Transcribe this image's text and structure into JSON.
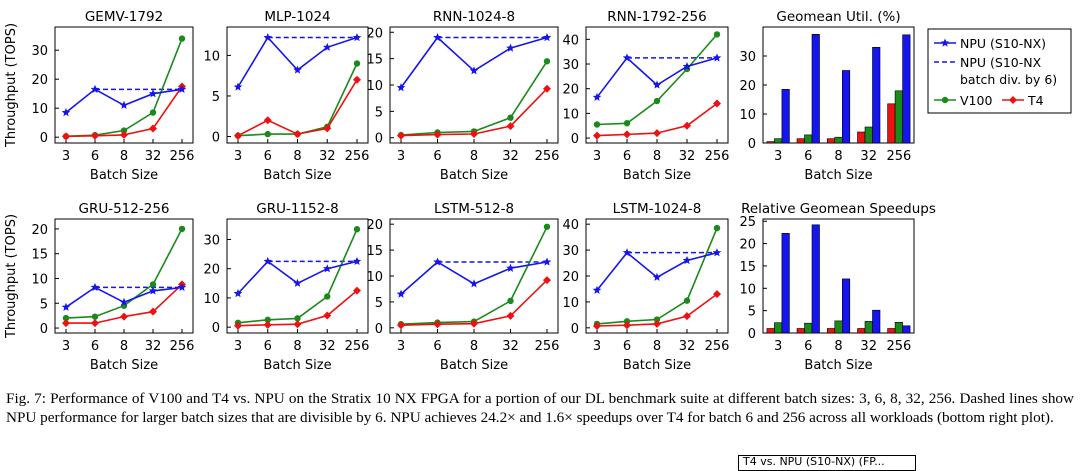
{
  "chart_data": [
    {
      "type": "line",
      "title": "GEMV-1792",
      "ylabel": "Throughput (TOPS)",
      "xlabel": "Batch Size",
      "categories": [
        "3",
        "6",
        "8",
        "32",
        "256"
      ],
      "yticks": [
        0,
        10,
        20,
        30
      ],
      "ylim": [
        -2,
        38
      ],
      "series": [
        {
          "name": "NPU (S10-NX)",
          "values": [
            8.5,
            16.5,
            11,
            15,
            16.5
          ]
        },
        {
          "name": "V100",
          "values": [
            0.3,
            0.7,
            2.3,
            8.5,
            34
          ]
        },
        {
          "name": "T4",
          "values": [
            0.3,
            0.5,
            0.8,
            3,
            17.5
          ]
        }
      ],
      "dashed": 16.5
    },
    {
      "type": "line",
      "title": "MLP-1024",
      "ylabel": "",
      "xlabel": "Batch Size",
      "categories": [
        "3",
        "6",
        "8",
        "32",
        "256"
      ],
      "yticks": [
        0,
        5,
        10
      ],
      "ylim": [
        -0.8,
        13.5
      ],
      "series": [
        {
          "name": "NPU (S10-NX)",
          "values": [
            6.1,
            12.2,
            8.2,
            11,
            12.2
          ]
        },
        {
          "name": "V100",
          "values": [
            0.1,
            0.3,
            0.3,
            1.2,
            9
          ]
        },
        {
          "name": "T4",
          "values": [
            0.1,
            2,
            0.3,
            1,
            7
          ]
        }
      ],
      "dashed": 12.2
    },
    {
      "type": "line",
      "title": "RNN-1024-8",
      "ylabel": "",
      "xlabel": "Batch Size",
      "categories": [
        "3",
        "6",
        "8",
        "32",
        "256"
      ],
      "yticks": [
        0,
        5,
        10,
        15,
        20
      ],
      "ylim": [
        -1,
        21
      ],
      "series": [
        {
          "name": "NPU (S10-NX)",
          "values": [
            9.5,
            19,
            12.7,
            17,
            19
          ]
        },
        {
          "name": "V100",
          "values": [
            0.5,
            1,
            1.2,
            3.8,
            14.5
          ]
        },
        {
          "name": "T4",
          "values": [
            0.4,
            0.6,
            0.7,
            2.2,
            9.3
          ]
        }
      ],
      "dashed": 19
    },
    {
      "type": "line",
      "title": "RNN-1792-256",
      "ylabel": "",
      "xlabel": "Batch Size",
      "categories": [
        "3",
        "6",
        "8",
        "32",
        "256"
      ],
      "yticks": [
        0,
        10,
        20,
        30,
        40
      ],
      "ylim": [
        -2,
        45
      ],
      "series": [
        {
          "name": "NPU (S10-NX)",
          "values": [
            16.5,
            32.5,
            21.5,
            29,
            32.5
          ]
        },
        {
          "name": "V100",
          "values": [
            5.5,
            6,
            15,
            28,
            42
          ]
        },
        {
          "name": "T4",
          "values": [
            1,
            1.5,
            2,
            5,
            14
          ]
        }
      ],
      "dashed": 32.5
    },
    {
      "type": "bar",
      "title": "Geomean Util. (%)",
      "ylabel": "",
      "xlabel": "Batch Size",
      "categories": [
        "3",
        "6",
        "8",
        "32",
        "256"
      ],
      "yticks": [
        0,
        10,
        20,
        30
      ],
      "ylim": [
        0,
        40
      ],
      "series": [
        {
          "name": "T4",
          "values": [
            0.5,
            1.5,
            1.5,
            3.8,
            13.5
          ]
        },
        {
          "name": "V100",
          "values": [
            1.5,
            2.8,
            2,
            5.5,
            18
          ]
        },
        {
          "name": "NPU (S10-NX)",
          "values": [
            18.5,
            37.5,
            25,
            33,
            37.3
          ]
        }
      ]
    },
    {
      "type": "line",
      "title": "GRU-512-256",
      "ylabel": "Throughput (TOPS)",
      "xlabel": "Batch Size",
      "categories": [
        "3",
        "6",
        "8",
        "32",
        "256"
      ],
      "yticks": [
        0,
        5,
        10,
        15,
        20
      ],
      "ylim": [
        -1,
        22
      ],
      "series": [
        {
          "name": "NPU (S10-NX)",
          "values": [
            4.2,
            8.2,
            5.2,
            7.5,
            8.2
          ]
        },
        {
          "name": "V100",
          "values": [
            2,
            2.3,
            4.5,
            8.8,
            20
          ]
        },
        {
          "name": "T4",
          "values": [
            1,
            1,
            2.3,
            3.3,
            8.8
          ]
        }
      ],
      "dashed": 8.2
    },
    {
      "type": "line",
      "title": "GRU-1152-8",
      "ylabel": "",
      "xlabel": "Batch Size",
      "categories": [
        "3",
        "6",
        "8",
        "32",
        "256"
      ],
      "yticks": [
        0,
        10,
        20,
        30
      ],
      "ylim": [
        -2,
        37
      ],
      "series": [
        {
          "name": "NPU (S10-NX)",
          "values": [
            11.5,
            22.5,
            15,
            20,
            22.5
          ]
        },
        {
          "name": "V100",
          "values": [
            1.5,
            2.5,
            3,
            10.5,
            33.5
          ]
        },
        {
          "name": "T4",
          "values": [
            0.5,
            0.8,
            1,
            4,
            12.5
          ]
        }
      ],
      "dashed": 22.5
    },
    {
      "type": "line",
      "title": "LSTM-512-8",
      "ylabel": "",
      "xlabel": "Batch Size",
      "categories": [
        "3",
        "6",
        "8",
        "32",
        "256"
      ],
      "yticks": [
        0,
        5,
        10,
        15,
        20
      ],
      "ylim": [
        -1,
        21
      ],
      "series": [
        {
          "name": "NPU (S10-NX)",
          "values": [
            6.5,
            12.7,
            8.5,
            11.5,
            12.7
          ]
        },
        {
          "name": "V100",
          "values": [
            0.7,
            1,
            1.2,
            5.2,
            19.5
          ]
        },
        {
          "name": "T4",
          "values": [
            0.5,
            0.7,
            0.8,
            2.3,
            9.2
          ]
        }
      ],
      "dashed": 12.7
    },
    {
      "type": "line",
      "title": "LSTM-1024-8",
      "ylabel": "",
      "xlabel": "Batch Size",
      "categories": [
        "3",
        "6",
        "8",
        "32",
        "256"
      ],
      "yticks": [
        0,
        10,
        20,
        30,
        40
      ],
      "ylim": [
        -2,
        42
      ],
      "series": [
        {
          "name": "NPU (S10-NX)",
          "values": [
            14.5,
            29,
            19.5,
            26,
            29
          ]
        },
        {
          "name": "V100",
          "values": [
            1.5,
            2.5,
            3.2,
            10.5,
            38.5
          ]
        },
        {
          "name": "T4",
          "values": [
            0.7,
            1,
            1.5,
            4.5,
            13
          ]
        }
      ],
      "dashed": 29
    },
    {
      "type": "bar",
      "title": "Relative Geomean Speedups",
      "ylabel": "",
      "xlabel": "Batch Size",
      "categories": [
        "3",
        "6",
        "8",
        "32",
        "256"
      ],
      "yticks": [
        0,
        5,
        10,
        15,
        20,
        25
      ],
      "ylim": [
        0,
        25.5
      ],
      "series": [
        {
          "name": "T4",
          "values": [
            1,
            1,
            1,
            1,
            1
          ]
        },
        {
          "name": "V100",
          "values": [
            2.3,
            2.2,
            2.7,
            2.6,
            2.4
          ]
        },
        {
          "name": "NPU (S10-NX)",
          "values": [
            22.3,
            24.2,
            12.1,
            5.1,
            1.6
          ]
        }
      ]
    }
  ],
  "legend": {
    "items": [
      {
        "label1": "NPU (S10-NX)",
        "label2": "",
        "style": "npu"
      },
      {
        "label1": "NPU (S10-NX",
        "label2": "batch div. by 6)",
        "style": "dash"
      }
    ],
    "v100": "V100",
    "t4": "T4"
  },
  "colors": {
    "npu": "#1515ee",
    "v100": "#1a8a1a",
    "t4": "#ee1111"
  },
  "caption": "Fig. 7: Performance of V100 and T4 vs. NPU on the Stratix 10 NX FPGA for a portion of our DL benchmark suite at different batch sizes: 3, 6, 8, 32, 256. Dashed lines show NPU performance for larger batch sizes that are divisible by 6. NPU achieves 24.2× and 1.6× speedups over T4 for batch 6 and 256 across all workloads (bottom right plot).",
  "clipped_text": "T4 vs. NPU (S10-NX) (FP..."
}
